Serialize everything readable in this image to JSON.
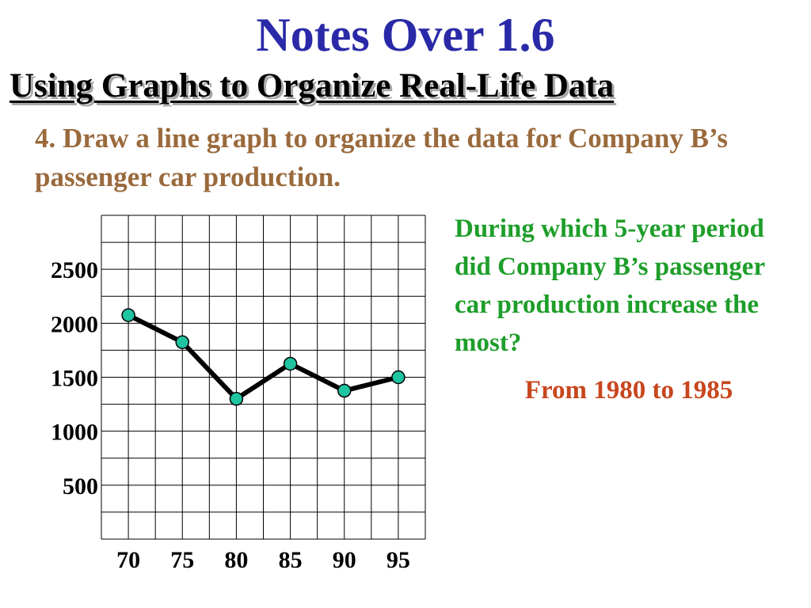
{
  "slide": {
    "title": "Notes Over 1.6",
    "subtitle": "Using Graphs to Organize Real-Life Data",
    "problem": "4. Draw a line graph to organize the data for Company B’s passenger car production.",
    "question": "During which 5-year period did Company B’s passenger car production increase the most?",
    "answer": "From 1980 to 1985"
  },
  "chart_data": {
    "type": "line",
    "x": [
      70,
      75,
      80,
      85,
      90,
      95
    ],
    "series": [
      {
        "values": [
          2075,
          1825,
          1300,
          1625,
          1375,
          1500
        ]
      }
    ],
    "xticks": [
      "70",
      "75",
      "80",
      "85",
      "90",
      "95"
    ],
    "yticks": [
      {
        "value": 500,
        "label": "500"
      },
      {
        "value": 1000,
        "label": "1000"
      },
      {
        "value": 1500,
        "label": "1500"
      },
      {
        "value": 2000,
        "label": "2000"
      },
      {
        "value": 2500,
        "label": "2500"
      }
    ],
    "xlim": [
      67.5,
      97.5
    ],
    "ylim": [
      0,
      3000
    ],
    "grid": true,
    "colors": {
      "line": "#000000",
      "marker": "#1fc4a0",
      "grid": "#000000"
    }
  }
}
